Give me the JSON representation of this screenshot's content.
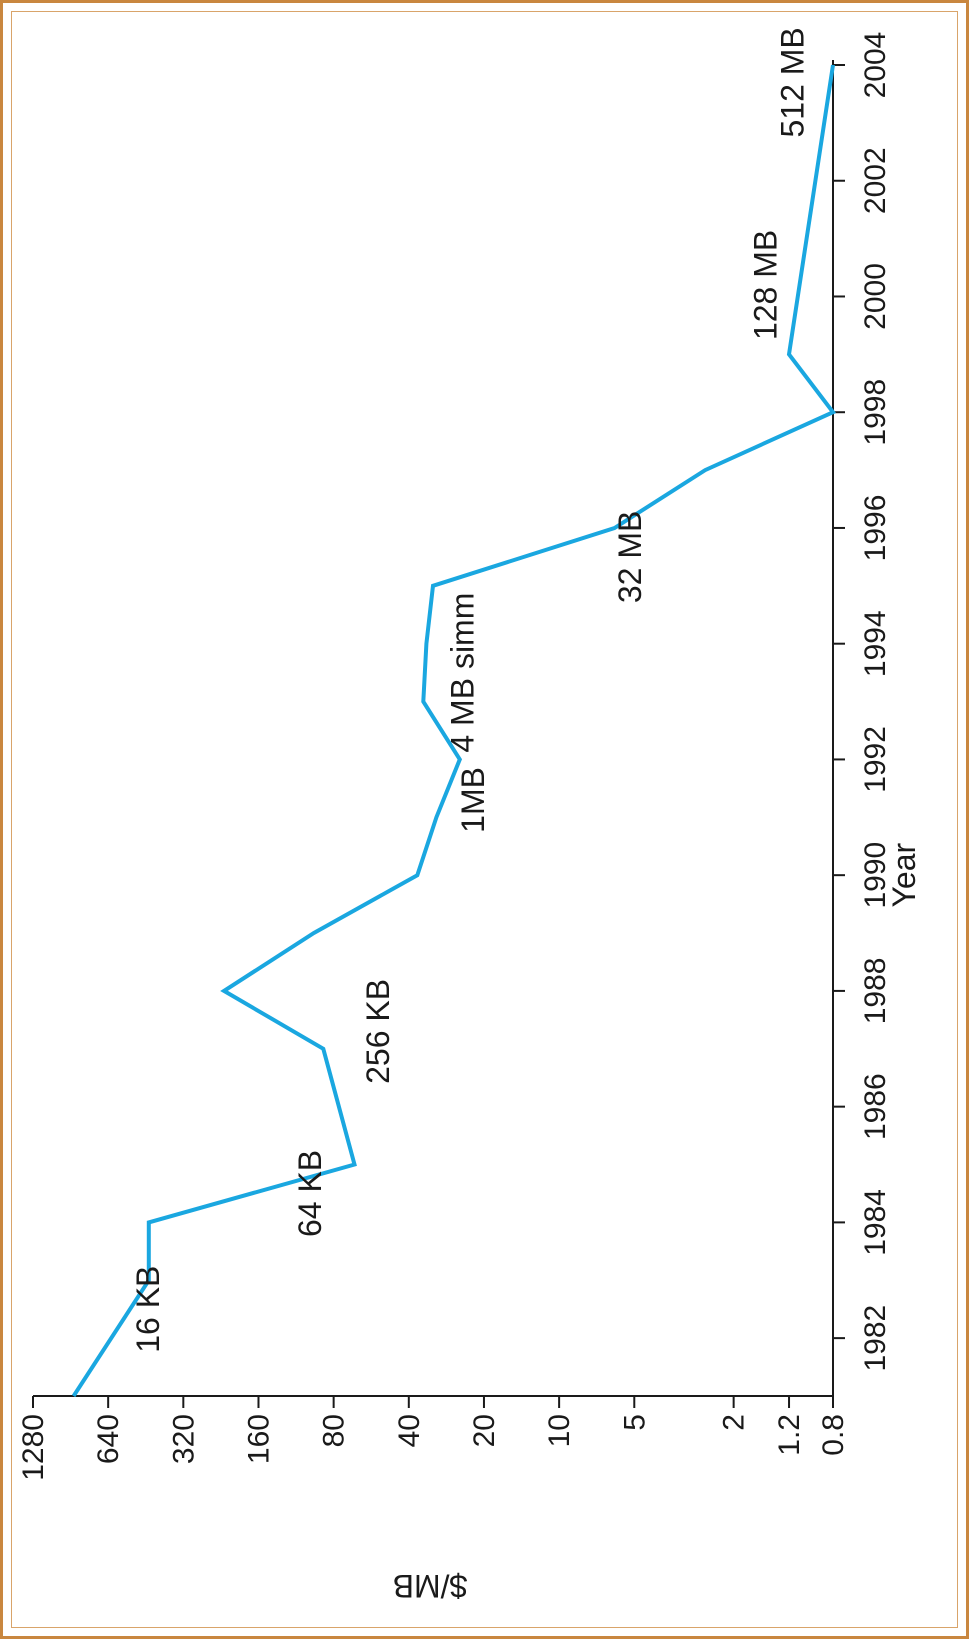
{
  "chart_data": {
    "type": "line",
    "title": "",
    "xlabel": "Year",
    "ylabel": "$/MB",
    "y_scale": "log",
    "orientation": "rotated-90-ccw",
    "xlim": [
      1981,
      2004
    ],
    "ylim": [
      0.8,
      1280
    ],
    "x_ticks": [
      1982,
      1984,
      1986,
      1988,
      1990,
      1992,
      1994,
      1996,
      1998,
      2000,
      2002,
      2004
    ],
    "y_ticks": [
      {
        "value": 0.8,
        "label": "0.8"
      },
      {
        "value": 1.2,
        "label": "1.2"
      },
      {
        "value": 2,
        "label": "2"
      },
      {
        "value": 5,
        "label": "5"
      },
      {
        "value": 10,
        "label": "10"
      },
      {
        "value": 20,
        "label": "20"
      },
      {
        "value": 40,
        "label": "40"
      },
      {
        "value": 80,
        "label": "80"
      },
      {
        "value": 160,
        "label": "160"
      },
      {
        "value": 320,
        "label": "320"
      },
      {
        "value": 640,
        "label": "640"
      },
      {
        "value": 1280,
        "label": "1280"
      }
    ],
    "series": [
      {
        "color": "#1aa7e0",
        "points": [
          {
            "x": 1981,
            "y": 880
          },
          {
            "x": 1983,
            "y": 440
          },
          {
            "x": 1984,
            "y": 440
          },
          {
            "x": 1985,
            "y": 66
          },
          {
            "x": 1987,
            "y": 88
          },
          {
            "x": 1988,
            "y": 220
          },
          {
            "x": 1989,
            "y": 96
          },
          {
            "x": 1990,
            "y": 37
          },
          {
            "x": 1991,
            "y": 31
          },
          {
            "x": 1992,
            "y": 25
          },
          {
            "x": 1993,
            "y": 35
          },
          {
            "x": 1994,
            "y": 34
          },
          {
            "x": 1995,
            "y": 32
          },
          {
            "x": 1996,
            "y": 6
          },
          {
            "x": 1997,
            "y": 2.6
          },
          {
            "x": 1998,
            "y": 0.8
          },
          {
            "x": 1999,
            "y": 1.2
          },
          {
            "x": 2004,
            "y": 0.8
          }
        ]
      }
    ],
    "annotations": [
      {
        "text": "16 KB",
        "x": 1982.5,
        "y": 400
      },
      {
        "text": "64 KB",
        "x": 1984.5,
        "y": 90
      },
      {
        "text": "256 KB",
        "x": 1987.3,
        "y": 48
      },
      {
        "text": "1MB",
        "x": 1991.3,
        "y": 20
      },
      {
        "text": "4 MB simm",
        "x": 1993.5,
        "y": 22
      },
      {
        "text": "32 MB",
        "x": 1995.5,
        "y": 4.7
      },
      {
        "text": "128 MB",
        "x": 2000.2,
        "y": 1.35
      },
      {
        "text": "512 MB",
        "x": 2003.7,
        "y": 1.05
      }
    ]
  }
}
